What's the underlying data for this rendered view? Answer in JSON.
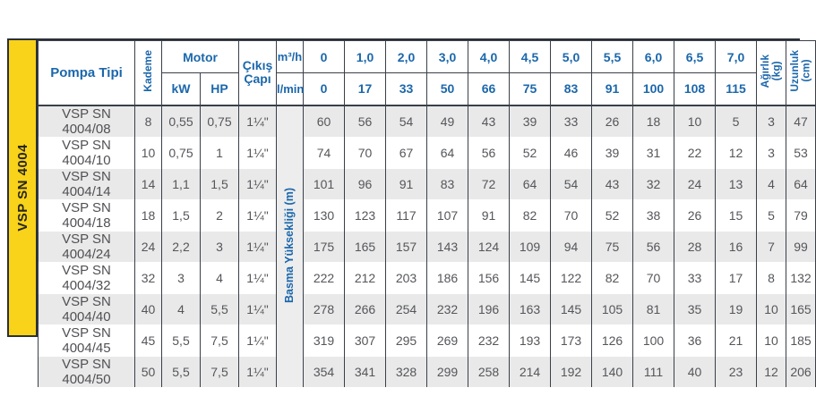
{
  "colors": {
    "accent_blue": "#1b67ab",
    "band_yellow": "#f9d21a",
    "border_dark": "#3a4049",
    "stripe_gray": "#e9e9e9",
    "value_gray": "#55565a"
  },
  "table": {
    "series_label": "VSP SN 4004",
    "headers": {
      "pompa_tipi": "Pompa Tipi",
      "kademe": "Kademe",
      "motor": "Motor",
      "kw": "kW",
      "hp": "HP",
      "cikis_capi": "Çıkış Çapı",
      "m3h": "m³/h",
      "lmin": "l/min",
      "agirlik_lines": [
        "Ağırlık",
        "(kg)"
      ],
      "uzunluk_lines": [
        "Uzunluk",
        "(cm)"
      ],
      "basma": "Basma Yüksekliği (m)"
    },
    "flow_m3h": [
      "0",
      "1,0",
      "2,0",
      "3,0",
      "4,0",
      "4,5",
      "5,0",
      "5,5",
      "6,0",
      "6,5",
      "7,0"
    ],
    "flow_lmin": [
      "0",
      "17",
      "33",
      "50",
      "66",
      "75",
      "83",
      "91",
      "100",
      "108",
      "115"
    ],
    "rows": [
      {
        "type": "VSP SN 4004/08",
        "kademe": "8",
        "kw": "0,55",
        "hp": "0,75",
        "cikis": "1¼\"",
        "head": [
          "60",
          "56",
          "54",
          "49",
          "43",
          "39",
          "33",
          "26",
          "18",
          "10",
          "5"
        ],
        "agirlik": "3",
        "uzunluk": "47"
      },
      {
        "type": "VSP SN 4004/10",
        "kademe": "10",
        "kw": "0,75",
        "hp": "1",
        "cikis": "1¼\"",
        "head": [
          "74",
          "70",
          "67",
          "64",
          "56",
          "52",
          "46",
          "39",
          "31",
          "22",
          "12"
        ],
        "agirlik": "3",
        "uzunluk": "53"
      },
      {
        "type": "VSP SN 4004/14",
        "kademe": "14",
        "kw": "1,1",
        "hp": "1,5",
        "cikis": "1¼\"",
        "head": [
          "101",
          "96",
          "91",
          "83",
          "72",
          "64",
          "54",
          "43",
          "32",
          "24",
          "13"
        ],
        "agirlik": "4",
        "uzunluk": "64"
      },
      {
        "type": "VSP SN 4004/18",
        "kademe": "18",
        "kw": "1,5",
        "hp": "2",
        "cikis": "1¼\"",
        "head": [
          "130",
          "123",
          "117",
          "107",
          "91",
          "82",
          "70",
          "52",
          "38",
          "26",
          "15"
        ],
        "agirlik": "5",
        "uzunluk": "79"
      },
      {
        "type": "VSP SN 4004/24",
        "kademe": "24",
        "kw": "2,2",
        "hp": "3",
        "cikis": "1¼\"",
        "head": [
          "175",
          "165",
          "157",
          "143",
          "124",
          "109",
          "94",
          "75",
          "56",
          "28",
          "16"
        ],
        "agirlik": "7",
        "uzunluk": "99"
      },
      {
        "type": "VSP SN 4004/32",
        "kademe": "32",
        "kw": "3",
        "hp": "4",
        "cikis": "1¼\"",
        "head": [
          "222",
          "212",
          "203",
          "186",
          "156",
          "145",
          "122",
          "82",
          "70",
          "33",
          "17"
        ],
        "agirlik": "8",
        "uzunluk": "132"
      },
      {
        "type": "VSP SN 4004/40",
        "kademe": "40",
        "kw": "4",
        "hp": "5,5",
        "cikis": "1¼\"",
        "head": [
          "278",
          "266",
          "254",
          "232",
          "196",
          "163",
          "145",
          "105",
          "81",
          "35",
          "19"
        ],
        "agirlik": "10",
        "uzunluk": "165"
      },
      {
        "type": "VSP SN 4004/45",
        "kademe": "45",
        "kw": "5,5",
        "hp": "7,5",
        "cikis": "1¼\"",
        "head": [
          "319",
          "307",
          "295",
          "269",
          "232",
          "193",
          "173",
          "126",
          "100",
          "36",
          "21"
        ],
        "agirlik": "10",
        "uzunluk": "185"
      },
      {
        "type": "VSP SN 4004/50",
        "kademe": "50",
        "kw": "5,5",
        "hp": "7,5",
        "cikis": "1¼\"",
        "head": [
          "354",
          "341",
          "328",
          "299",
          "258",
          "214",
          "192",
          "140",
          "111",
          "40",
          "23"
        ],
        "agirlik": "12",
        "uzunluk": "206"
      }
    ]
  }
}
